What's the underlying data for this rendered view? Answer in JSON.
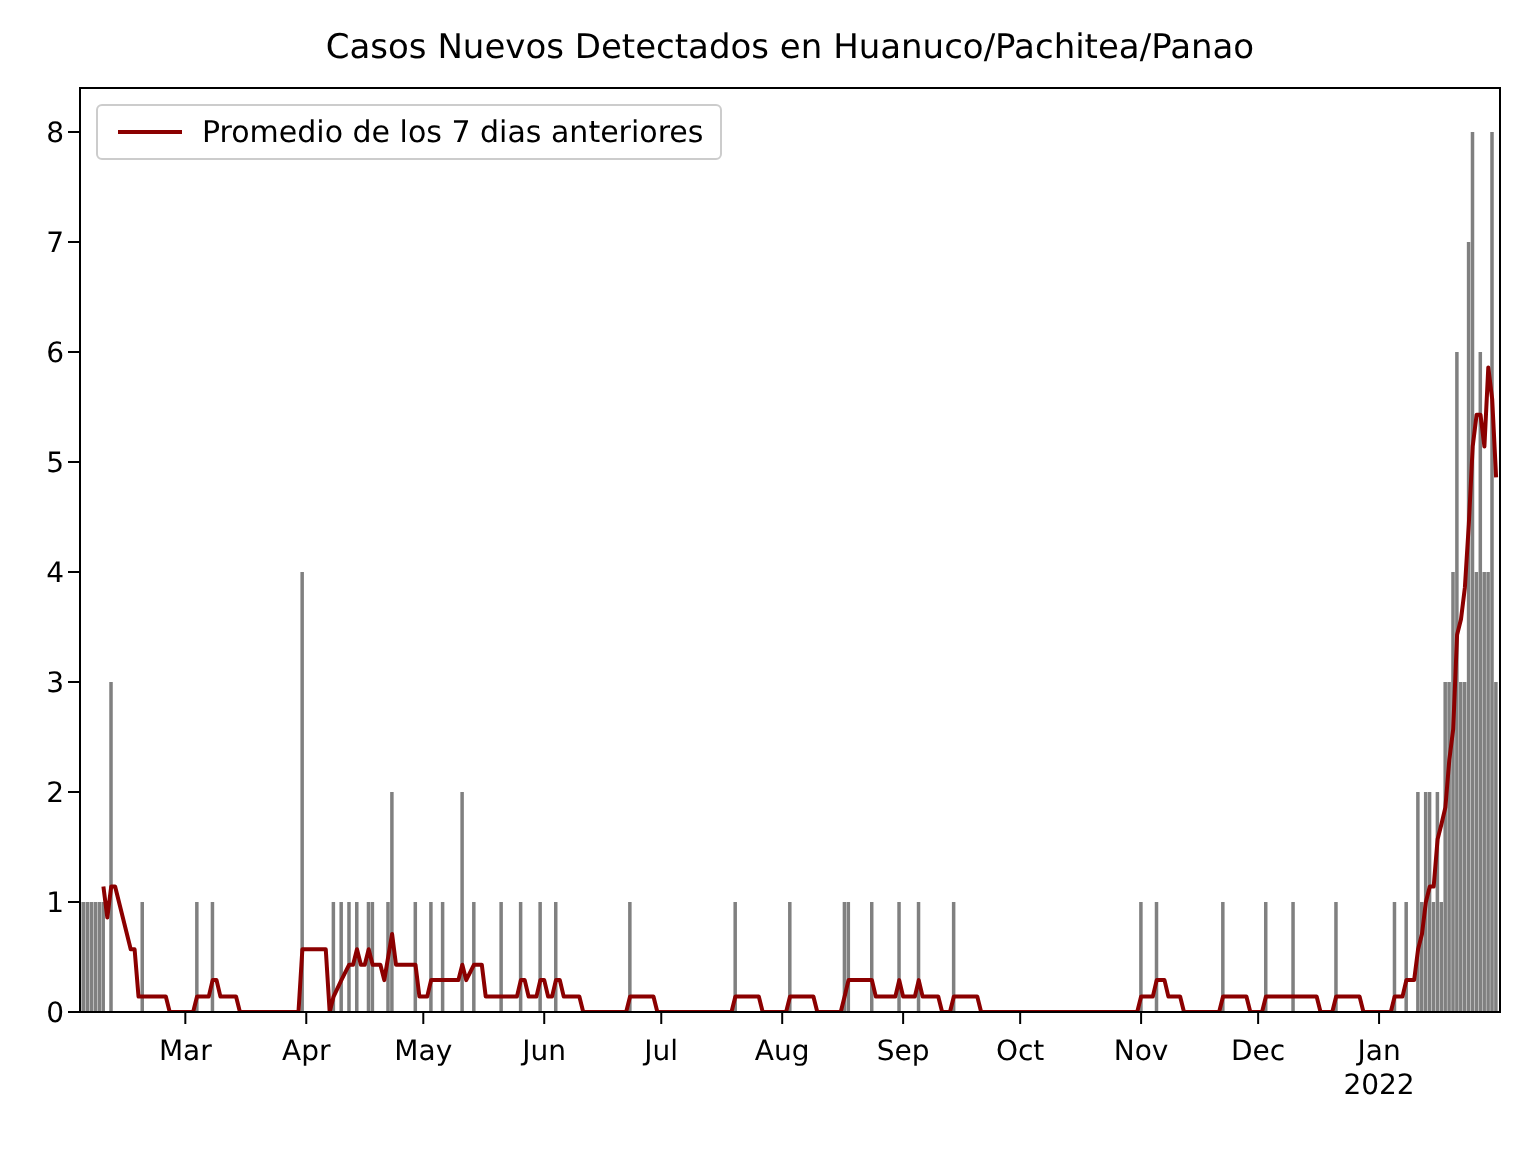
{
  "chart_data": {
    "type": "bar",
    "title": "Casos Nuevos Detectados en Huanuco/Pachitea/Panao",
    "xlim": [
      "2021-02-02",
      "2022-02-01"
    ],
    "xticks": [
      {
        "value": "2021-03-01",
        "label": "Mar"
      },
      {
        "value": "2021-04-01",
        "label": "Apr"
      },
      {
        "value": "2021-05-01",
        "label": "May"
      },
      {
        "value": "2021-06-01",
        "label": "Jun"
      },
      {
        "value": "2021-07-01",
        "label": "Jul"
      },
      {
        "value": "2021-08-01",
        "label": "Aug"
      },
      {
        "value": "2021-09-01",
        "label": "Sep"
      },
      {
        "value": "2021-10-01",
        "label": "Oct"
      },
      {
        "value": "2021-11-01",
        "label": "Nov"
      },
      {
        "value": "2021-12-01",
        "label": "Dec"
      },
      {
        "value": "2022-01-01",
        "label": "Jan\n2022"
      }
    ],
    "ylim": [
      0,
      8.4
    ],
    "yticks": [
      0,
      1,
      2,
      3,
      4,
      5,
      6,
      7,
      8
    ],
    "grid": false,
    "legend": "top left",
    "series": [
      {
        "color": "#808080",
        "x": [
          "2021-02-02",
          "2021-02-03",
          "2021-02-04",
          "2021-02-05",
          "2021-02-06",
          "2021-02-07",
          "2021-02-08",
          "2021-02-10",
          "2021-02-18",
          "2021-03-04",
          "2021-03-08",
          "2021-03-31",
          "2021-04-08",
          "2021-04-10",
          "2021-04-12",
          "2021-04-14",
          "2021-04-17",
          "2021-04-18",
          "2021-04-22",
          "2021-04-23",
          "2021-04-29",
          "2021-05-03",
          "2021-05-06",
          "2021-05-11",
          "2021-05-14",
          "2021-05-21",
          "2021-05-26",
          "2021-05-31",
          "2021-06-04",
          "2021-06-23",
          "2021-07-20",
          "2021-08-03",
          "2021-08-17",
          "2021-08-18",
          "2021-08-24",
          "2021-08-31",
          "2021-09-05",
          "2021-09-14",
          "2021-11-01",
          "2021-11-05",
          "2021-11-22",
          "2021-12-03",
          "2021-12-10",
          "2021-12-21",
          "2022-01-05",
          "2022-01-08",
          "2022-01-11",
          "2022-01-12",
          "2022-01-13",
          "2022-01-14",
          "2022-01-15",
          "2022-01-16",
          "2022-01-17",
          "2022-01-18",
          "2022-01-19",
          "2022-01-20",
          "2022-01-21",
          "2022-01-22",
          "2022-01-23",
          "2022-01-24",
          "2022-01-25",
          "2022-01-26",
          "2022-01-27",
          "2022-01-28",
          "2022-01-29",
          "2022-01-30",
          "2022-01-31"
        ],
        "values": [
          1,
          1,
          1,
          1,
          1,
          1,
          1,
          3,
          1,
          1,
          1,
          4,
          1,
          1,
          1,
          1,
          1,
          1,
          1,
          2,
          1,
          1,
          1,
          2,
          1,
          1,
          1,
          1,
          1,
          1,
          1,
          1,
          1,
          1,
          1,
          1,
          1,
          1,
          1,
          1,
          1,
          1,
          1,
          1,
          1,
          1,
          2,
          1,
          2,
          2,
          1,
          2,
          1,
          3,
          3,
          4,
          6,
          3,
          3,
          7,
          8,
          4,
          6,
          4,
          4,
          8,
          3
        ]
      },
      {
        "type": "line",
        "name": "Promedio de los 7 dias anteriores",
        "color": "#8b0000",
        "x": [
          "2021-02-08",
          "2021-02-09",
          "2021-02-10",
          "2021-02-11",
          "2021-02-15",
          "2021-02-16",
          "2021-02-17",
          "2021-02-24",
          "2021-02-25",
          "2021-03-03",
          "2021-03-04",
          "2021-03-07",
          "2021-03-08",
          "2021-03-09",
          "2021-03-10",
          "2021-03-14",
          "2021-03-15",
          "2021-03-30",
          "2021-03-31",
          "2021-04-06",
          "2021-04-07",
          "2021-04-08",
          "2021-04-10",
          "2021-04-12",
          "2021-04-13",
          "2021-04-14",
          "2021-04-15",
          "2021-04-16",
          "2021-04-17",
          "2021-04-18",
          "2021-04-20",
          "2021-04-21",
          "2021-04-23",
          "2021-04-24",
          "2021-04-29",
          "2021-04-30",
          "2021-05-02",
          "2021-05-03",
          "2021-05-10",
          "2021-05-11",
          "2021-05-12",
          "2021-05-14",
          "2021-05-16",
          "2021-05-17",
          "2021-05-25",
          "2021-05-26",
          "2021-05-27",
          "2021-05-28",
          "2021-05-30",
          "2021-05-31",
          "2021-06-01",
          "2021-06-02",
          "2021-06-03",
          "2021-06-04",
          "2021-06-05",
          "2021-06-06",
          "2021-06-10",
          "2021-06-11",
          "2021-06-22",
          "2021-06-23",
          "2021-06-29",
          "2021-06-30",
          "2021-07-19",
          "2021-07-20",
          "2021-07-26",
          "2021-07-27",
          "2021-08-02",
          "2021-08-03",
          "2021-08-09",
          "2021-08-10",
          "2021-08-16",
          "2021-08-17",
          "2021-08-18",
          "2021-08-23",
          "2021-08-24",
          "2021-08-25",
          "2021-08-30",
          "2021-08-31",
          "2021-09-01",
          "2021-09-04",
          "2021-09-05",
          "2021-09-06",
          "2021-09-10",
          "2021-09-11",
          "2021-09-13",
          "2021-09-14",
          "2021-09-20",
          "2021-09-21",
          "2021-10-31",
          "2021-11-01",
          "2021-11-04",
          "2021-11-05",
          "2021-11-07",
          "2021-11-08",
          "2021-11-11",
          "2021-11-12",
          "2021-11-21",
          "2021-11-22",
          "2021-11-28",
          "2021-11-29",
          "2021-12-02",
          "2021-12-03",
          "2021-12-16",
          "2021-12-17",
          "2021-12-20",
          "2021-12-21",
          "2021-12-27",
          "2021-12-28",
          "2022-01-04",
          "2022-01-05",
          "2022-01-07",
          "2022-01-08",
          "2022-01-10",
          "2022-01-11",
          "2022-01-12",
          "2022-01-13",
          "2022-01-14",
          "2022-01-15",
          "2022-01-16",
          "2022-01-17",
          "2022-01-18",
          "2022-01-19",
          "2022-01-20",
          "2022-01-21",
          "2022-01-22",
          "2022-01-23",
          "2022-01-24",
          "2022-01-25",
          "2022-01-26",
          "2022-01-27",
          "2022-01-28",
          "2022-01-29",
          "2022-01-30",
          "2022-01-31"
        ],
        "values": [
          1.14,
          0.86,
          1.14,
          1.14,
          0.57,
          0.57,
          0.14,
          0.14,
          0,
          0,
          0.14,
          0.14,
          0.29,
          0.29,
          0.14,
          0.14,
          0,
          0,
          0.57,
          0.57,
          0,
          0.14,
          0.29,
          0.43,
          0.43,
          0.57,
          0.43,
          0.43,
          0.57,
          0.43,
          0.43,
          0.29,
          0.71,
          0.43,
          0.43,
          0.14,
          0.14,
          0.29,
          0.29,
          0.43,
          0.29,
          0.43,
          0.43,
          0.14,
          0.14,
          0.29,
          0.29,
          0.14,
          0.14,
          0.29,
          0.29,
          0.14,
          0.14,
          0.29,
          0.29,
          0.14,
          0.14,
          0,
          0,
          0.14,
          0.14,
          0,
          0,
          0.14,
          0.14,
          0,
          0,
          0.14,
          0.14,
          0,
          0,
          0.14,
          0.29,
          0.29,
          0.29,
          0.14,
          0.14,
          0.29,
          0.14,
          0.14,
          0.29,
          0.14,
          0.14,
          0,
          0,
          0.14,
          0.14,
          0,
          0,
          0.14,
          0.14,
          0.29,
          0.29,
          0.14,
          0.14,
          0,
          0,
          0.14,
          0.14,
          0,
          0,
          0.14,
          0.14,
          0,
          0,
          0.14,
          0.14,
          0,
          0,
          0.14,
          0.14,
          0.29,
          0.29,
          0.57,
          0.71,
          1.0,
          1.14,
          1.14,
          1.57,
          1.71,
          1.86,
          2.29,
          2.57,
          3.43,
          3.57,
          3.86,
          4.43,
          5.14,
          5.43,
          5.43,
          5.14,
          5.86,
          5.57,
          4.86
        ]
      }
    ]
  }
}
